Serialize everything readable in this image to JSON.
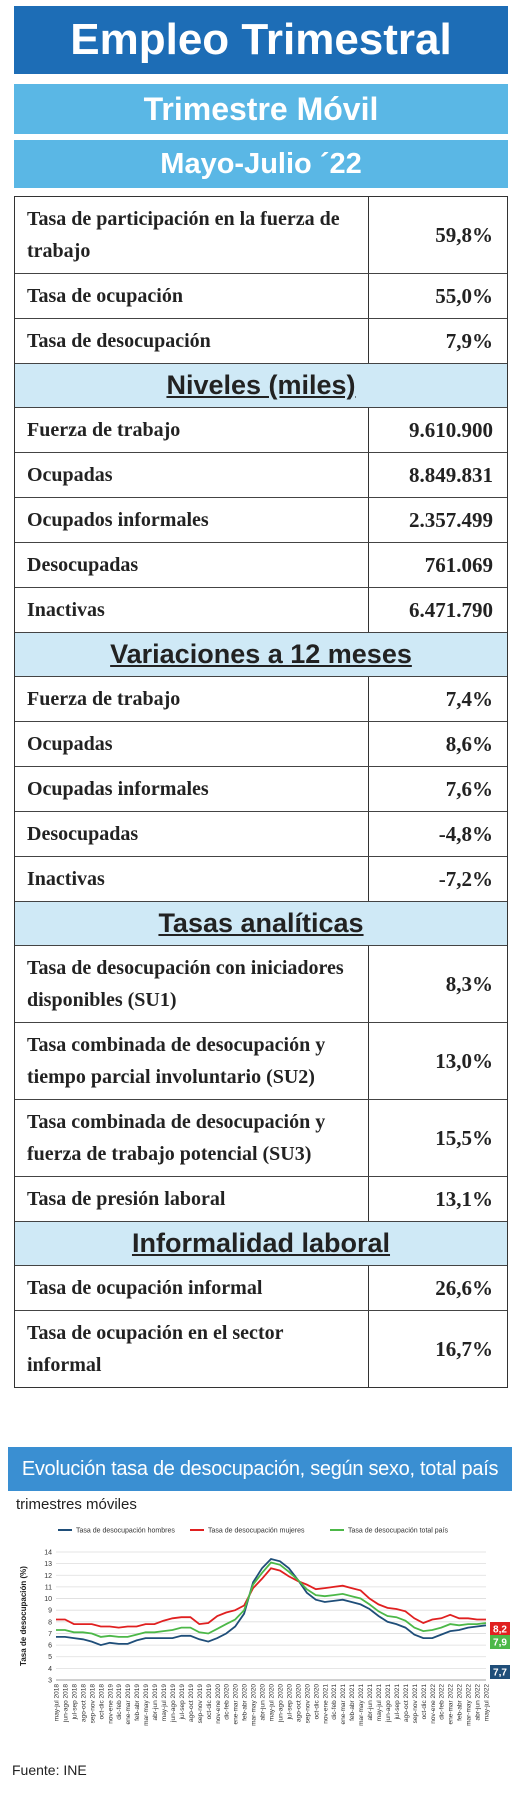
{
  "header": {
    "title": "Empleo Trimestral",
    "subtitle": "Trimestre Móvil",
    "period": "Mayo-Julio ´22"
  },
  "table": {
    "intro_rows": [
      [
        "Tasa de participación en la fuerza de trabajo",
        "59,8%"
      ],
      [
        "Tasa de ocupación",
        "55,0%"
      ],
      [
        "Tasa de desocupación",
        "7,9%"
      ]
    ],
    "sections": [
      {
        "heading": "Niveles  (miles)",
        "rows": [
          [
            "Fuerza de trabajo",
            "9.610.900"
          ],
          [
            "Ocupadas",
            "8.849.831"
          ],
          [
            "Ocupados informales",
            "2.357.499"
          ],
          [
            "Desocupadas",
            "761.069"
          ],
          [
            "Inactivas",
            "6.471.790"
          ]
        ]
      },
      {
        "heading": "Variaciones a 12 meses",
        "rows": [
          [
            "Fuerza de trabajo",
            "7,4%"
          ],
          [
            "Ocupadas",
            "8,6%"
          ],
          [
            "Ocupadas informales",
            "7,6%"
          ],
          [
            "Desocupadas",
            "-4,8%"
          ],
          [
            "Inactivas",
            "-7,2%"
          ]
        ]
      },
      {
        "heading": "Tasas  analíticas",
        "rows": [
          [
            "Tasa de desocupación con iniciadores disponibles (SU1)",
            "8,3%"
          ],
          [
            "Tasa combinada de desocupación y tiempo parcial involuntario (SU2)",
            "13,0%"
          ],
          [
            "Tasa combinada de desocupación y fuerza de trabajo potencial (SU3)",
            "15,5%"
          ],
          [
            "Tasa de presión laboral",
            "13,1%"
          ]
        ]
      },
      {
        "heading": "Informalidad  laboral",
        "rows": [
          [
            "Tasa de ocupación informal",
            "26,6%"
          ],
          [
            "Tasa de ocupación en el sector informal",
            "16,7%"
          ]
        ]
      }
    ]
  },
  "chart": {
    "type": "line",
    "title": "Evolución tasa de desocupación, según sexo, total país",
    "subtitle": "trimestres móviles",
    "y_label": "Tasa de desocupación (%)",
    "categories": [
      "may-jul 2018",
      "jun-ago 2018",
      "jul-sep 2018",
      "ago-oct 2018",
      "sep-nov 2018",
      "oct-dic 2018",
      "nov-ene 2019",
      "dic-feb 2019",
      "ene-mar 2019",
      "feb-abr 2019",
      "mar-may 2019",
      "abr-jun 2019",
      "may-jul 2019",
      "jun-ago 2019",
      "jul-sep 2019",
      "ago-oct 2019",
      "sep-nov 2019",
      "oct-dic 2019",
      "nov-ene 2020",
      "dic-feb 2020",
      "ene-mar 2020",
      "feb-abr 2020",
      "mar-may 2020",
      "abr-jun 2020",
      "may-jul 2020",
      "jun-ago 2020",
      "jul-sep 2020",
      "ago-oct 2020",
      "sep-nov 2020",
      "oct-dic 2020",
      "nov-ene 2021",
      "dic-feb 2021",
      "ene-mar 2021",
      "feb-abr 2021",
      "mar-may 2021",
      "abr-jun 2021",
      "may-jul 2021",
      "jun-ago 2021",
      "jul-sep 2021",
      "ago-oct 2021",
      "sep-nov 2021",
      "oct-dic 2021",
      "nov-ene 2022",
      "dic-feb 2022",
      "ene-mar 2022",
      "feb-abr 2022",
      "mar-may 2022",
      "abr-jun 2022",
      "may-jul 2022"
    ],
    "series": [
      {
        "name": "Tasa de desocupación hombres",
        "color": "#1f4e79",
        "end_label": "7,7",
        "values": [
          6.7,
          6.7,
          6.6,
          6.5,
          6.3,
          6.0,
          6.2,
          6.1,
          6.1,
          6.4,
          6.6,
          6.6,
          6.6,
          6.6,
          6.8,
          6.8,
          6.5,
          6.3,
          6.6,
          7.0,
          7.6,
          8.7,
          11.4,
          12.6,
          13.4,
          13.2,
          12.6,
          11.6,
          10.5,
          9.9,
          9.7,
          9.8,
          9.9,
          9.7,
          9.5,
          9.1,
          8.5,
          8.0,
          7.8,
          7.5,
          6.9,
          6.6,
          6.6,
          6.9,
          7.2,
          7.3,
          7.5,
          7.6,
          7.7
        ]
      },
      {
        "name": "Tasa de desocupación mujeres",
        "color": "#e02020",
        "end_label": "8,2",
        "values": [
          8.2,
          8.2,
          7.8,
          7.8,
          7.8,
          7.6,
          7.6,
          7.5,
          7.6,
          7.6,
          7.8,
          7.8,
          8.1,
          8.3,
          8.4,
          8.4,
          7.8,
          7.9,
          8.5,
          8.8,
          9.0,
          9.4,
          10.9,
          11.7,
          12.6,
          12.4,
          11.9,
          11.5,
          11.2,
          10.8,
          10.9,
          11.0,
          11.1,
          10.9,
          10.7,
          10.0,
          9.5,
          9.2,
          9.1,
          8.9,
          8.3,
          7.9,
          8.2,
          8.3,
          8.6,
          8.3,
          8.3,
          8.2,
          8.2
        ]
      },
      {
        "name": "Tasa de desocupación total país",
        "color": "#4cb848",
        "end_label": "7,9",
        "values": [
          7.3,
          7.3,
          7.1,
          7.1,
          7.0,
          6.7,
          6.8,
          6.7,
          6.7,
          6.9,
          7.1,
          7.1,
          7.2,
          7.3,
          7.5,
          7.5,
          7.1,
          7.0,
          7.4,
          7.8,
          8.2,
          9.0,
          11.2,
          12.2,
          13.1,
          12.9,
          12.3,
          11.6,
          10.8,
          10.3,
          10.2,
          10.3,
          10.4,
          10.2,
          10.0,
          9.5,
          8.9,
          8.5,
          8.4,
          8.1,
          7.5,
          7.2,
          7.3,
          7.5,
          7.8,
          7.7,
          7.8,
          7.8,
          7.9
        ]
      }
    ],
    "ylim": [
      3,
      14
    ],
    "yticks": [
      3,
      4,
      5,
      6,
      7,
      8,
      9,
      10,
      11,
      12,
      13,
      14
    ],
    "grid": true
  },
  "footer": {
    "source": "Fuente: INE"
  }
}
